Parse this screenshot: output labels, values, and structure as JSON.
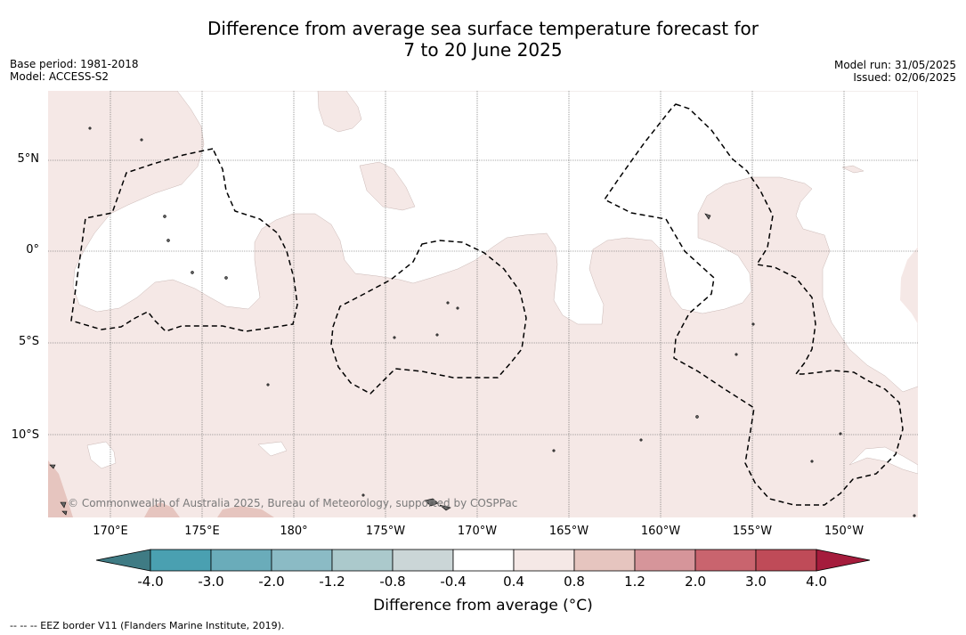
{
  "title": {
    "line1": "Difference from average sea surface temperature forecast for",
    "line2": "7 to 20 June 2025"
  },
  "meta_left": {
    "base_period": "Base period: 1981-2018",
    "model": "Model: ACCESS-S2"
  },
  "meta_right": {
    "model_run": "Model run: 31/05/2025",
    "issued": "Issued: 02/06/2025"
  },
  "map": {
    "lat_labels": [
      "5°N",
      "0°",
      "5°S",
      "10°S"
    ],
    "lon_labels": [
      "170°E",
      "175°E",
      "180°",
      "175°W",
      "170°W",
      "165°W",
      "160°W",
      "155°W",
      "150°W"
    ],
    "copyright": "© Commonwealth of Australia 2025, Bureau of Meteorology, supported by COSPPac",
    "colors": {
      "ocean_neutral": "#ffffff",
      "warm_0_4_0_8": "#f5e8e6",
      "warm_0_8_1_2": "#e6c5bf"
    }
  },
  "colorbar": {
    "ticks": [
      "-4.0",
      "-3.0",
      "-2.0",
      "-1.2",
      "-0.8",
      "-0.4",
      "0.4",
      "0.8",
      "1.2",
      "2.0",
      "3.0",
      "4.0"
    ],
    "colors": [
      "#3f7b84",
      "#4aa0b1",
      "#6aacba",
      "#8bbbc5",
      "#abc9cc",
      "#cbd6d7",
      "#ffffff",
      "#f5e8e6",
      "#e6c5bf",
      "#d6959a",
      "#c9646e",
      "#bf4b58",
      "#a51c3c"
    ],
    "label": "Difference from average (°C)"
  },
  "footnote": "--  --  -- EEZ border V11 (Flanders Marine Institute, 2019)."
}
